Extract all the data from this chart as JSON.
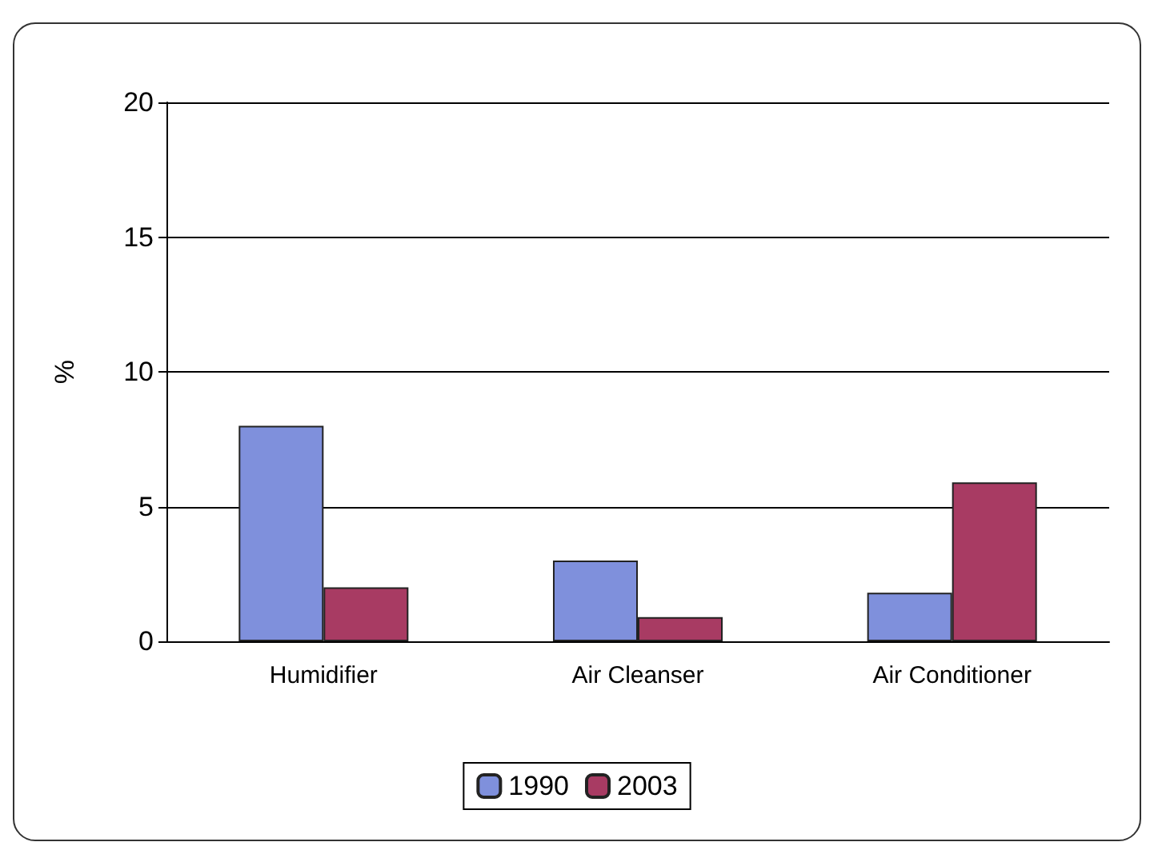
{
  "chart_data": {
    "type": "bar",
    "ylabel": "%",
    "categories": [
      "Humidifier",
      "Air Cleanser",
      "Air Conditioner"
    ],
    "series": [
      {
        "name": "1990",
        "color": "#7f90dc",
        "values": [
          8,
          3,
          1.8
        ]
      },
      {
        "name": "2003",
        "color": "#a83b63",
        "values": [
          2,
          0.9,
          5.9
        ]
      }
    ],
    "ylim": [
      0,
      20
    ],
    "yticks": [
      0,
      5,
      10,
      15,
      20
    ],
    "grid": "y",
    "legend": "bottom"
  }
}
